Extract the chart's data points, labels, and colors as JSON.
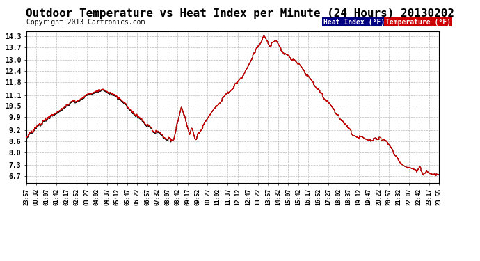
{
  "title": "Outdoor Temperature vs Heat Index per Minute (24 Hours) 20130202",
  "copyright": "Copyright 2013 Cartronics.com",
  "legend_labels": [
    "Heat Index (°F)",
    "Temperature (°F)"
  ],
  "legend_bg_heat": "#000080",
  "legend_bg_temp": "#cc0000",
  "line_color_heat": "#1a1a1a",
  "line_color_temp": "#cc0000",
  "y_ticks": [
    6.7,
    7.3,
    8.0,
    8.6,
    9.2,
    9.9,
    10.5,
    11.1,
    11.8,
    12.4,
    13.0,
    13.7,
    14.3
  ],
  "ylim": [
    6.35,
    14.55
  ],
  "background_color": "#ffffff",
  "grid_color": "#bbbbbb",
  "title_fontsize": 11.5,
  "copyright_fontsize": 7
}
